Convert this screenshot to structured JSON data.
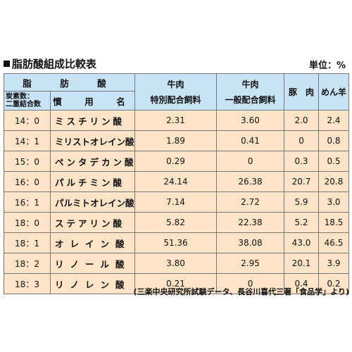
{
  "title": "脂肪酸組成比較表",
  "unit": "単位：%",
  "header": {
    "fatty_acid": "脂　肪　酸",
    "code_label_1": "炭素数：",
    "code_label_2": "二重結合数",
    "common_name": "慣　用　名",
    "col_a_1": "牛肉",
    "col_a_2": "特別配合飼料",
    "col_b_1": "牛肉",
    "col_b_2": "一般配合飼料",
    "col_c": "豚　肉",
    "col_d": "めん羊"
  },
  "rows": [
    {
      "code": "14：0",
      "name": "ミスチリン酸",
      "a": "2.31",
      "b": "3.60",
      "c": "2.0",
      "d": "2.4"
    },
    {
      "code": "14：1",
      "name": "ミリストオレイン酸",
      "a": "1.89",
      "b": "0.41",
      "c": "0",
      "d": "0.8"
    },
    {
      "code": "15：0",
      "name": "ペンタデカン酸",
      "a": "0.29",
      "b": "0",
      "c": "0.3",
      "d": "0.5"
    },
    {
      "code": "16：0",
      "name": "パルチミン酸",
      "a": "24.14",
      "b": "26.38",
      "c": "20.7",
      "d": "20.8"
    },
    {
      "code": "16：1",
      "name": "パルミトオレイン酸",
      "a": "7.14",
      "b": "2.72",
      "c": "5.9",
      "d": "3.0"
    },
    {
      "code": "18：0",
      "name": "ステアリン酸",
      "a": "5.82",
      "b": "22.38",
      "c": "5.2",
      "d": "18.5"
    },
    {
      "code": "18：1",
      "name": "オレイン酸",
      "a": "51.36",
      "b": "38.08",
      "c": "43.0",
      "d": "46.5"
    },
    {
      "code": "18：2",
      "name": "リノール酸",
      "a": "3.80",
      "b": "2.95",
      "c": "20.1",
      "d": "3.9"
    },
    {
      "code": "18：3",
      "name": "リノレン酸",
      "a": "0.21",
      "b": "0",
      "c": "0.4",
      "d": "0.2"
    }
  ],
  "source": "(三楽中央研究所試験データ、長谷川喜代三著「食品学」より)"
}
